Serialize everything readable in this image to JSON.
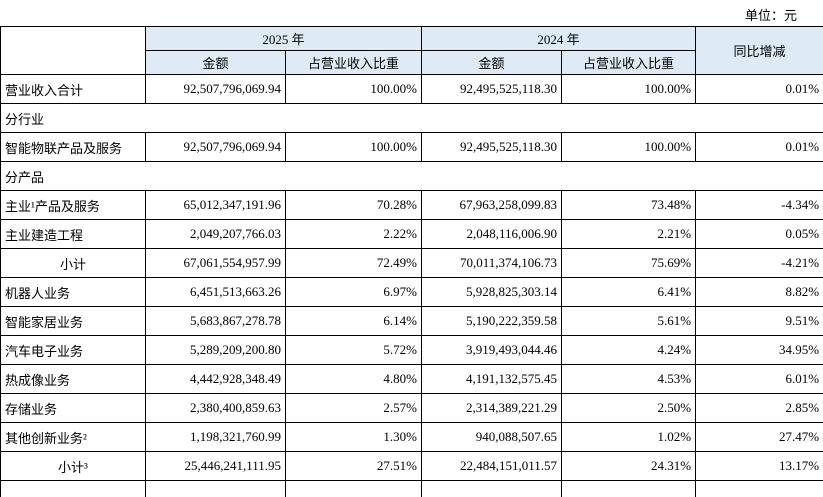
{
  "unit_label": "单位：元",
  "table": {
    "header": {
      "corner": "",
      "groups": [
        {
          "label": "2025 年",
          "subcols": [
            "金额",
            "占营业收入比重"
          ]
        },
        {
          "label": "2024 年",
          "subcols": [
            "金额",
            "占营业收入比重"
          ]
        }
      ],
      "yoy_label": "同比增减"
    },
    "header_bg_color": "#deebf7",
    "rows": [
      {
        "type": "data",
        "label": "营业收入合计",
        "values": [
          "92,507,796,069.94",
          "100.00%",
          "92,495,525,118.30",
          "100.00%",
          "0.01%"
        ]
      },
      {
        "type": "section",
        "label": "分行业"
      },
      {
        "type": "data",
        "label": "智能物联产品及服务",
        "values": [
          "92,507,796,069.94",
          "100.00%",
          "92,495,525,118.30",
          "100.00%",
          "0.01%"
        ]
      },
      {
        "type": "section",
        "label": "分产品"
      },
      {
        "type": "data",
        "label": "主业¹产品及服务",
        "values": [
          "65,012,347,191.96",
          "70.28%",
          "67,963,258,099.83",
          "73.48%",
          "-4.34%"
        ]
      },
      {
        "type": "data",
        "label": "主业建造工程",
        "values": [
          "2,049,207,766.03",
          "2.22%",
          "2,048,116,006.90",
          "2.21%",
          "0.05%"
        ]
      },
      {
        "type": "data",
        "label": "小计",
        "center": true,
        "values": [
          "67,061,554,957.99",
          "72.49%",
          "70,011,374,106.73",
          "75.69%",
          "-4.21%"
        ]
      },
      {
        "type": "data",
        "label": "机器人业务",
        "values": [
          "6,451,513,663.26",
          "6.97%",
          "5,928,825,303.14",
          "6.41%",
          "8.82%"
        ]
      },
      {
        "type": "data",
        "label": "智能家居业务",
        "values": [
          "5,683,867,278.78",
          "6.14%",
          "5,190,222,359.58",
          "5.61%",
          "9.51%"
        ]
      },
      {
        "type": "data",
        "label": "汽车电子业务",
        "values": [
          "5,289,209,200.80",
          "5.72%",
          "3,919,493,044.46",
          "4.24%",
          "34.95%"
        ]
      },
      {
        "type": "data",
        "label": "热成像业务",
        "values": [
          "4,442,928,348.49",
          "4.80%",
          "4,191,132,575.45",
          "4.53%",
          "6.01%"
        ]
      },
      {
        "type": "data",
        "label": "存储业务",
        "values": [
          "2,380,400,859.63",
          "2.57%",
          "2,314,389,221.29",
          "2.50%",
          "2.85%"
        ]
      },
      {
        "type": "data",
        "label": "其他创新业务²",
        "values": [
          "1,198,321,760.99",
          "1.30%",
          "940,088,507.65",
          "1.02%",
          "27.47%"
        ]
      },
      {
        "type": "data",
        "label": "小计³",
        "center": true,
        "values": [
          "25,446,241,111.95",
          "27.51%",
          "22,484,151,011.57",
          "24.31%",
          "13.17%"
        ]
      },
      {
        "type": "partial",
        "label": ""
      }
    ]
  }
}
